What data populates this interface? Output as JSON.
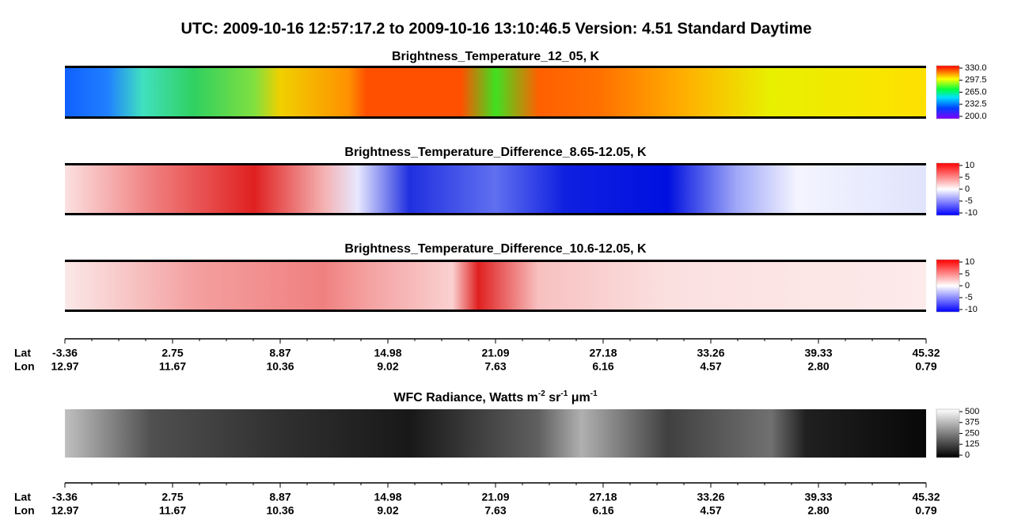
{
  "title": "UTC:  2009-10-16   12:57:17.2  to  2009-10-16   13:10:46.5    Version: 4.51  Standard Daytime",
  "panels": [
    {
      "title_parts": [
        "Brightness_Temperature_12_05, K"
      ],
      "colorbar": [
        "330.0",
        "297.5",
        "265.0",
        "232.5",
        "200.0"
      ]
    },
    {
      "title_parts": [
        "Brightness_Temperature_Difference_8.65-12.05, K"
      ],
      "colorbar": [
        "10",
        "5",
        "0",
        "-5",
        "-10"
      ]
    },
    {
      "title_parts": [
        "Brightness_Temperature_Difference_10.6-12.05, K"
      ],
      "colorbar": [
        "10",
        "5",
        "0",
        "-5",
        "-10"
      ]
    },
    {
      "title_parts": [
        "WFC Radiance, Watts m",
        "-2",
        " sr",
        "-1",
        " μm",
        "-1"
      ],
      "colorbar": [
        "500",
        "375",
        "250",
        "125",
        "0"
      ]
    }
  ],
  "axes": [
    {
      "lat_label": "Lat",
      "lon_label": "Lon",
      "lat": [
        "-3.36",
        "2.75",
        "8.87",
        "14.98",
        "21.09",
        "27.18",
        "33.26",
        "39.33",
        "45.32"
      ],
      "lon": [
        "12.97",
        "11.67",
        "10.36",
        "9.02",
        "7.63",
        "6.16",
        "4.57",
        "2.80",
        "0.79"
      ]
    },
    {
      "lat_label": "Lat",
      "lon_label": "Lon",
      "lat": [
        "-3.36",
        "2.75",
        "8.87",
        "14.98",
        "21.09",
        "27.18",
        "33.26",
        "39.33",
        "45.32"
      ],
      "lon": [
        "12.97",
        "11.67",
        "10.36",
        "9.02",
        "7.63",
        "6.16",
        "4.57",
        "2.80",
        "0.79"
      ]
    }
  ]
}
